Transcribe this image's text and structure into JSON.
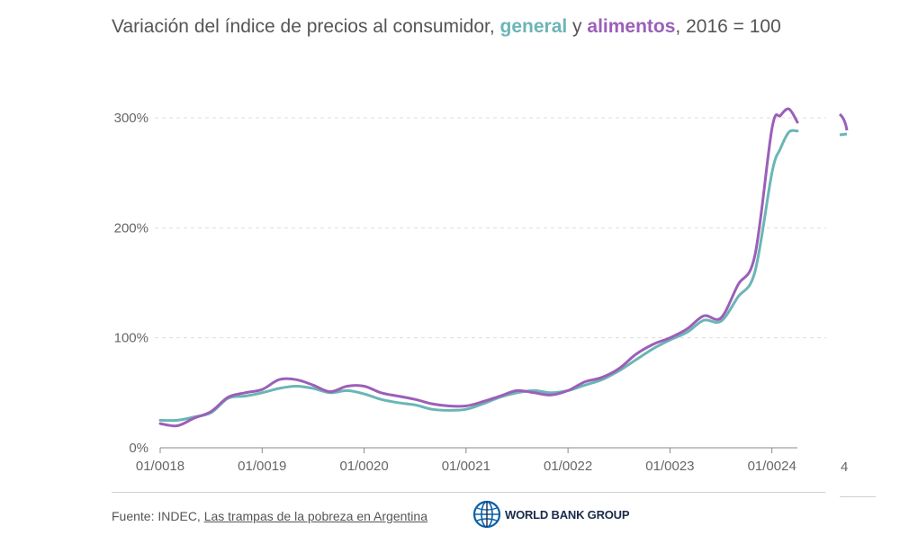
{
  "title": {
    "prefix": "Variación del índice de precios al consumidor, ",
    "general": "general",
    "connector": " y ",
    "alimentos": "alimentos",
    "suffix": ", 2016 = 100"
  },
  "footer": {
    "source_label": "Fuente: INDEC, ",
    "source_link": "Las trampas de la pobreza en Argentina",
    "logo_text": "WORLD BANK GROUP"
  },
  "colors": {
    "general": "#6bb5b5",
    "alimentos": "#9b5fb8",
    "grid": "#dddddd",
    "axis": "#888888"
  },
  "chart_data": {
    "type": "line",
    "title": "Variación del índice de precios al consumidor, general y alimentos, 2016 = 100",
    "x_tick_labels": [
      "01/0018",
      "01/0019",
      "01/0020",
      "01/0021",
      "01/0022",
      "01/0023",
      "01/0024"
    ],
    "y_tick_labels": [
      "0%",
      "100%",
      "200%",
      "300%"
    ],
    "x_start": "2018-01",
    "x_end": "2024-04",
    "ylim": [
      0,
      300
    ],
    "grid": "horizontal dashed",
    "series": [
      {
        "name": "general",
        "color": "#6bb5b5",
        "points": [
          [
            "2018-01",
            25
          ],
          [
            "2018-03",
            25
          ],
          [
            "2018-05",
            28
          ],
          [
            "2018-07",
            32
          ],
          [
            "2018-09",
            45
          ],
          [
            "2018-11",
            47
          ],
          [
            "2019-01",
            50
          ],
          [
            "2019-03",
            54
          ],
          [
            "2019-05",
            56
          ],
          [
            "2019-07",
            54
          ],
          [
            "2019-09",
            50
          ],
          [
            "2019-11",
            52
          ],
          [
            "2020-01",
            49
          ],
          [
            "2020-03",
            44
          ],
          [
            "2020-05",
            41
          ],
          [
            "2020-07",
            39
          ],
          [
            "2020-09",
            35
          ],
          [
            "2020-11",
            34
          ],
          [
            "2021-01",
            35
          ],
          [
            "2021-03",
            40
          ],
          [
            "2021-05",
            46
          ],
          [
            "2021-07",
            50
          ],
          [
            "2021-09",
            52
          ],
          [
            "2021-11",
            50
          ],
          [
            "2022-01",
            52
          ],
          [
            "2022-03",
            57
          ],
          [
            "2022-05",
            62
          ],
          [
            "2022-07",
            70
          ],
          [
            "2022-09",
            80
          ],
          [
            "2022-11",
            90
          ],
          [
            "2023-01",
            98
          ],
          [
            "2023-03",
            105
          ],
          [
            "2023-05",
            116
          ],
          [
            "2023-07",
            115
          ],
          [
            "2023-09",
            137
          ],
          [
            "2023-11",
            160
          ],
          [
            "2024-01",
            250
          ],
          [
            "2024-02",
            272
          ],
          [
            "2024-03",
            287
          ],
          [
            "2024-04",
            288
          ]
        ]
      },
      {
        "name": "alimentos",
        "color": "#9b5fb8",
        "points": [
          [
            "2018-01",
            22
          ],
          [
            "2018-03",
            20
          ],
          [
            "2018-05",
            27
          ],
          [
            "2018-07",
            33
          ],
          [
            "2018-09",
            46
          ],
          [
            "2018-11",
            50
          ],
          [
            "2019-01",
            53
          ],
          [
            "2019-03",
            62
          ],
          [
            "2019-05",
            62
          ],
          [
            "2019-07",
            57
          ],
          [
            "2019-09",
            51
          ],
          [
            "2019-11",
            56
          ],
          [
            "2020-01",
            56
          ],
          [
            "2020-03",
            50
          ],
          [
            "2020-05",
            47
          ],
          [
            "2020-07",
            44
          ],
          [
            "2020-09",
            40
          ],
          [
            "2020-11",
            38
          ],
          [
            "2021-01",
            38
          ],
          [
            "2021-03",
            42
          ],
          [
            "2021-05",
            47
          ],
          [
            "2021-07",
            52
          ],
          [
            "2021-09",
            50
          ],
          [
            "2021-11",
            48
          ],
          [
            "2022-01",
            52
          ],
          [
            "2022-03",
            60
          ],
          [
            "2022-05",
            64
          ],
          [
            "2022-07",
            72
          ],
          [
            "2022-09",
            85
          ],
          [
            "2022-11",
            94
          ],
          [
            "2023-01",
            100
          ],
          [
            "2023-03",
            108
          ],
          [
            "2023-05",
            120
          ],
          [
            "2023-07",
            118
          ],
          [
            "2023-09",
            148
          ],
          [
            "2023-11",
            175
          ],
          [
            "2024-01",
            290
          ],
          [
            "2024-02",
            302
          ],
          [
            "2024-03",
            308
          ],
          [
            "2024-04",
            296
          ]
        ]
      }
    ]
  }
}
